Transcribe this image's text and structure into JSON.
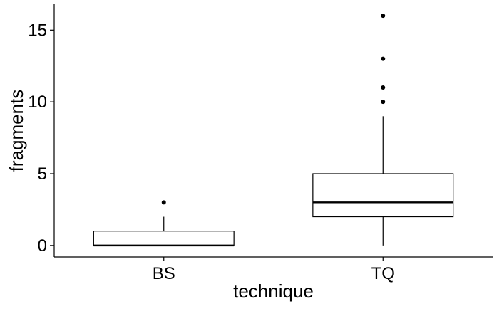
{
  "chart_data": {
    "type": "boxplot",
    "xlabel": "technique",
    "ylabel": "fragments",
    "ylim": [
      -0.8,
      16.8
    ],
    "yticks": [
      0,
      5,
      10,
      15
    ],
    "grid": false,
    "categories": [
      "BS",
      "TQ"
    ],
    "boxes": [
      {
        "category": "BS",
        "whisker_low": 0,
        "q1": 0,
        "median": 0,
        "q3": 1,
        "whisker_high": 2,
        "outliers": [
          3
        ]
      },
      {
        "category": "TQ",
        "whisker_low": 0,
        "q1": 2,
        "median": 3,
        "q3": 5,
        "whisker_high": 9,
        "outliers": [
          10,
          11,
          13,
          16
        ]
      }
    ]
  }
}
